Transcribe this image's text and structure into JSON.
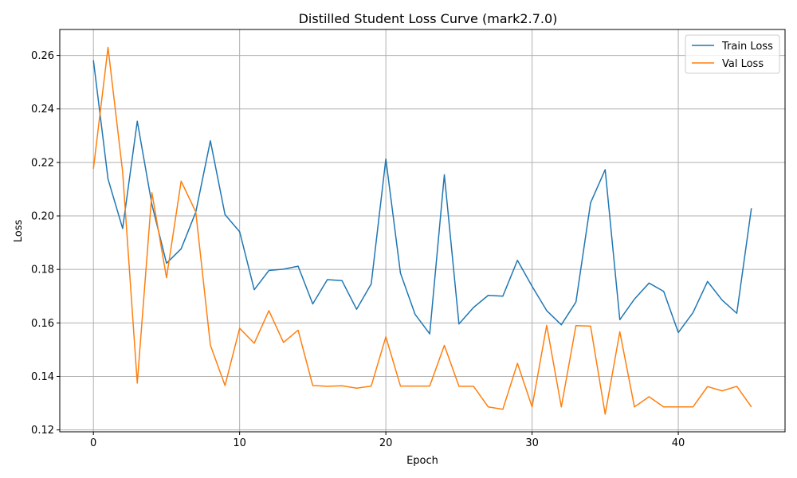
{
  "chart_data": {
    "type": "line",
    "title": "Distilled Student Loss Curve (mark2.7.0)",
    "xlabel": "Epoch",
    "ylabel": "Loss",
    "xlim": [
      -2.3,
      47.3
    ],
    "ylim": [
      0.1193,
      0.2697
    ],
    "xticks": [
      0,
      10,
      20,
      30,
      40
    ],
    "yticks": [
      0.12,
      0.14,
      0.16,
      0.18,
      0.2,
      0.22,
      0.24,
      0.26
    ],
    "ytick_labels": [
      "0.12",
      "0.14",
      "0.16",
      "0.18",
      "0.20",
      "0.22",
      "0.24",
      "0.26"
    ],
    "grid": true,
    "legend": "top-right",
    "x": [
      0,
      1,
      2,
      3,
      4,
      5,
      6,
      7,
      8,
      9,
      10,
      11,
      12,
      13,
      14,
      15,
      16,
      17,
      18,
      19,
      20,
      21,
      22,
      23,
      24,
      25,
      26,
      27,
      28,
      29,
      30,
      31,
      32,
      33,
      34,
      35,
      36,
      37,
      38,
      39,
      40,
      41,
      42,
      43,
      44,
      45
    ],
    "series": [
      {
        "name": "Train Loss",
        "color": "#1f77b4",
        "values": [
          0.2582,
          0.2138,
          0.1953,
          0.2354,
          0.2043,
          0.1823,
          0.1877,
          0.2014,
          0.2281,
          0.2005,
          0.1941,
          0.1724,
          0.1796,
          0.1801,
          0.1812,
          0.1671,
          0.1762,
          0.1758,
          0.1651,
          0.1746,
          0.2213,
          0.1786,
          0.1632,
          0.1559,
          0.2154,
          0.1596,
          0.1658,
          0.1703,
          0.17,
          0.1834,
          0.1737,
          0.1646,
          0.1593,
          0.1678,
          0.2049,
          0.2173,
          0.1612,
          0.1689,
          0.1749,
          0.1718,
          0.1564,
          0.1638,
          0.1755,
          0.1685,
          0.1636,
          0.2029
        ]
      },
      {
        "name": "Val Loss",
        "color": "#ff7f0e",
        "values": [
          0.2176,
          0.263,
          0.2164,
          0.1375,
          0.2087,
          0.1769,
          0.213,
          0.2015,
          0.1517,
          0.1366,
          0.158,
          0.1524,
          0.1646,
          0.1527,
          0.1573,
          0.1366,
          0.1363,
          0.1365,
          0.1356,
          0.1364,
          0.1548,
          0.1364,
          0.1364,
          0.1364,
          0.1516,
          0.1363,
          0.1363,
          0.1286,
          0.1277,
          0.1449,
          0.1286,
          0.1591,
          0.1286,
          0.159,
          0.1588,
          0.1259,
          0.1567,
          0.1286,
          0.1324,
          0.1286,
          0.1286,
          0.1286,
          0.1362,
          0.1346,
          0.1363,
          0.1286
        ]
      }
    ]
  }
}
